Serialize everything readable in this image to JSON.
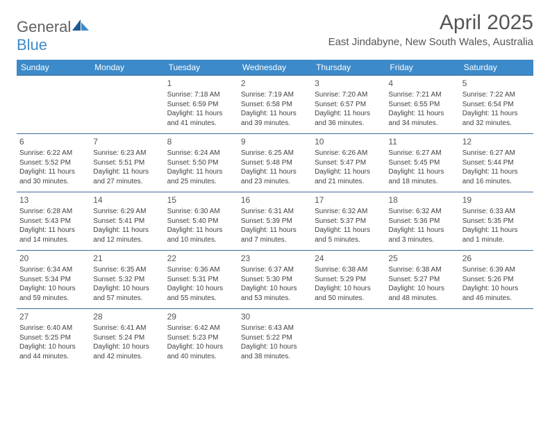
{
  "logo": {
    "text1": "General",
    "text2": "Blue"
  },
  "title": "April 2025",
  "location": "East Jindabyne, New South Wales, Australia",
  "colors": {
    "header_bg": "#3c8ac9",
    "header_text": "#ffffff",
    "row_border": "#3c6a99",
    "body_text": "#404040",
    "title_text": "#555555",
    "logo_gray": "#606060",
    "logo_blue": "#3c8ac9",
    "page_bg": "#ffffff"
  },
  "fonts": {
    "title_size": 30,
    "location_size": 15,
    "header_size": 12,
    "daynum_size": 12,
    "cell_size": 10
  },
  "weekdays": [
    "Sunday",
    "Monday",
    "Tuesday",
    "Wednesday",
    "Thursday",
    "Friday",
    "Saturday"
  ],
  "weeks": [
    [
      null,
      null,
      {
        "n": "1",
        "sr": "Sunrise: 7:18 AM",
        "ss": "Sunset: 6:59 PM",
        "dl": "Daylight: 11 hours and 41 minutes."
      },
      {
        "n": "2",
        "sr": "Sunrise: 7:19 AM",
        "ss": "Sunset: 6:58 PM",
        "dl": "Daylight: 11 hours and 39 minutes."
      },
      {
        "n": "3",
        "sr": "Sunrise: 7:20 AM",
        "ss": "Sunset: 6:57 PM",
        "dl": "Daylight: 11 hours and 36 minutes."
      },
      {
        "n": "4",
        "sr": "Sunrise: 7:21 AM",
        "ss": "Sunset: 6:55 PM",
        "dl": "Daylight: 11 hours and 34 minutes."
      },
      {
        "n": "5",
        "sr": "Sunrise: 7:22 AM",
        "ss": "Sunset: 6:54 PM",
        "dl": "Daylight: 11 hours and 32 minutes."
      }
    ],
    [
      {
        "n": "6",
        "sr": "Sunrise: 6:22 AM",
        "ss": "Sunset: 5:52 PM",
        "dl": "Daylight: 11 hours and 30 minutes."
      },
      {
        "n": "7",
        "sr": "Sunrise: 6:23 AM",
        "ss": "Sunset: 5:51 PM",
        "dl": "Daylight: 11 hours and 27 minutes."
      },
      {
        "n": "8",
        "sr": "Sunrise: 6:24 AM",
        "ss": "Sunset: 5:50 PM",
        "dl": "Daylight: 11 hours and 25 minutes."
      },
      {
        "n": "9",
        "sr": "Sunrise: 6:25 AM",
        "ss": "Sunset: 5:48 PM",
        "dl": "Daylight: 11 hours and 23 minutes."
      },
      {
        "n": "10",
        "sr": "Sunrise: 6:26 AM",
        "ss": "Sunset: 5:47 PM",
        "dl": "Daylight: 11 hours and 21 minutes."
      },
      {
        "n": "11",
        "sr": "Sunrise: 6:27 AM",
        "ss": "Sunset: 5:45 PM",
        "dl": "Daylight: 11 hours and 18 minutes."
      },
      {
        "n": "12",
        "sr": "Sunrise: 6:27 AM",
        "ss": "Sunset: 5:44 PM",
        "dl": "Daylight: 11 hours and 16 minutes."
      }
    ],
    [
      {
        "n": "13",
        "sr": "Sunrise: 6:28 AM",
        "ss": "Sunset: 5:43 PM",
        "dl": "Daylight: 11 hours and 14 minutes."
      },
      {
        "n": "14",
        "sr": "Sunrise: 6:29 AM",
        "ss": "Sunset: 5:41 PM",
        "dl": "Daylight: 11 hours and 12 minutes."
      },
      {
        "n": "15",
        "sr": "Sunrise: 6:30 AM",
        "ss": "Sunset: 5:40 PM",
        "dl": "Daylight: 11 hours and 10 minutes."
      },
      {
        "n": "16",
        "sr": "Sunrise: 6:31 AM",
        "ss": "Sunset: 5:39 PM",
        "dl": "Daylight: 11 hours and 7 minutes."
      },
      {
        "n": "17",
        "sr": "Sunrise: 6:32 AM",
        "ss": "Sunset: 5:37 PM",
        "dl": "Daylight: 11 hours and 5 minutes."
      },
      {
        "n": "18",
        "sr": "Sunrise: 6:32 AM",
        "ss": "Sunset: 5:36 PM",
        "dl": "Daylight: 11 hours and 3 minutes."
      },
      {
        "n": "19",
        "sr": "Sunrise: 6:33 AM",
        "ss": "Sunset: 5:35 PM",
        "dl": "Daylight: 11 hours and 1 minute."
      }
    ],
    [
      {
        "n": "20",
        "sr": "Sunrise: 6:34 AM",
        "ss": "Sunset: 5:34 PM",
        "dl": "Daylight: 10 hours and 59 minutes."
      },
      {
        "n": "21",
        "sr": "Sunrise: 6:35 AM",
        "ss": "Sunset: 5:32 PM",
        "dl": "Daylight: 10 hours and 57 minutes."
      },
      {
        "n": "22",
        "sr": "Sunrise: 6:36 AM",
        "ss": "Sunset: 5:31 PM",
        "dl": "Daylight: 10 hours and 55 minutes."
      },
      {
        "n": "23",
        "sr": "Sunrise: 6:37 AM",
        "ss": "Sunset: 5:30 PM",
        "dl": "Daylight: 10 hours and 53 minutes."
      },
      {
        "n": "24",
        "sr": "Sunrise: 6:38 AM",
        "ss": "Sunset: 5:29 PM",
        "dl": "Daylight: 10 hours and 50 minutes."
      },
      {
        "n": "25",
        "sr": "Sunrise: 6:38 AM",
        "ss": "Sunset: 5:27 PM",
        "dl": "Daylight: 10 hours and 48 minutes."
      },
      {
        "n": "26",
        "sr": "Sunrise: 6:39 AM",
        "ss": "Sunset: 5:26 PM",
        "dl": "Daylight: 10 hours and 46 minutes."
      }
    ],
    [
      {
        "n": "27",
        "sr": "Sunrise: 6:40 AM",
        "ss": "Sunset: 5:25 PM",
        "dl": "Daylight: 10 hours and 44 minutes."
      },
      {
        "n": "28",
        "sr": "Sunrise: 6:41 AM",
        "ss": "Sunset: 5:24 PM",
        "dl": "Daylight: 10 hours and 42 minutes."
      },
      {
        "n": "29",
        "sr": "Sunrise: 6:42 AM",
        "ss": "Sunset: 5:23 PM",
        "dl": "Daylight: 10 hours and 40 minutes."
      },
      {
        "n": "30",
        "sr": "Sunrise: 6:43 AM",
        "ss": "Sunset: 5:22 PM",
        "dl": "Daylight: 10 hours and 38 minutes."
      },
      null,
      null,
      null
    ]
  ]
}
